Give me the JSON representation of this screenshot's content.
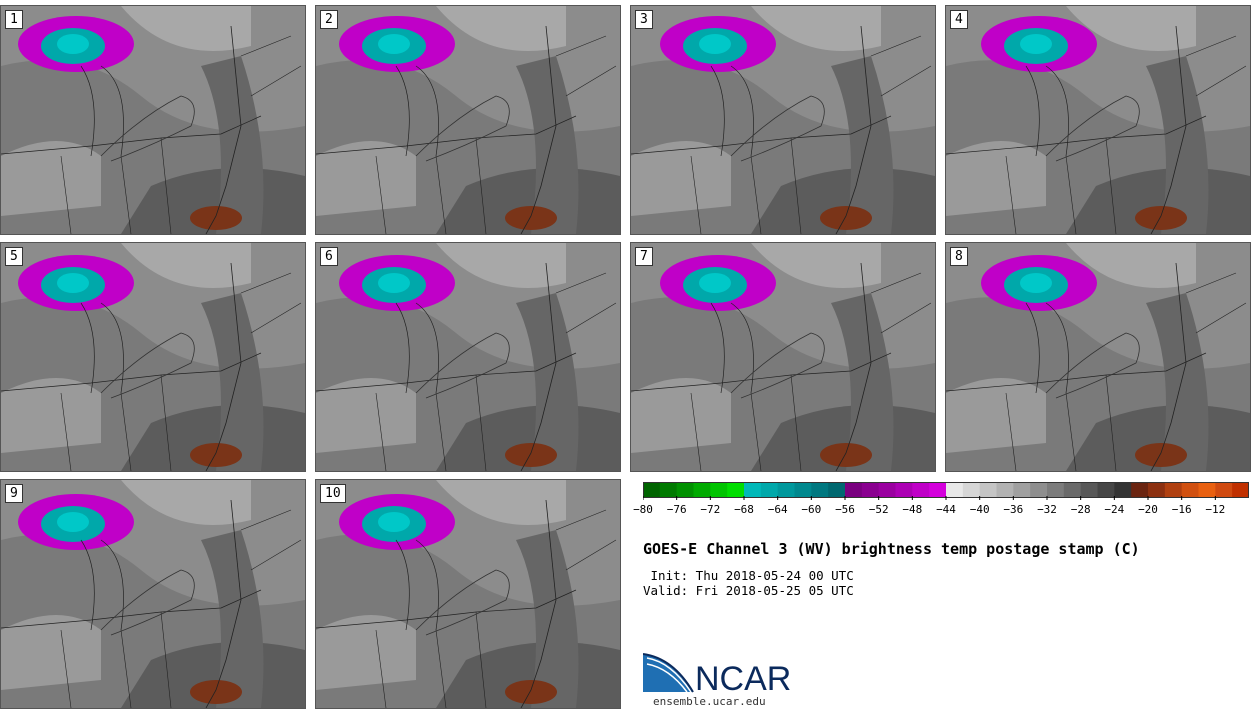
{
  "panels": [
    "1",
    "2",
    "3",
    "4",
    "5",
    "6",
    "7",
    "8",
    "9",
    "10"
  ],
  "colorbar": {
    "colors": [
      "#006400",
      "#007a00",
      "#009000",
      "#00aa00",
      "#00c400",
      "#00dd00",
      "#00b8b8",
      "#00a8aa",
      "#00989c",
      "#00888e",
      "#007880",
      "#006870",
      "#7a0080",
      "#8a0090",
      "#9a00a0",
      "#ac00b4",
      "#c000c8",
      "#d400dc",
      "#e8e8e8",
      "#d6d6d6",
      "#c4c4c4",
      "#b2b2b2",
      "#a0a0a0",
      "#8e8e8e",
      "#7c7c7c",
      "#6a6a6a",
      "#585858",
      "#464646",
      "#343434",
      "#6a2410",
      "#8c3010",
      "#b04010",
      "#d05010",
      "#e86010",
      "#d04a10",
      "#c03000"
    ],
    "ticks": [
      "−80",
      "−76",
      "−72",
      "−68",
      "−64",
      "−60",
      "−56",
      "−52",
      "−48",
      "−44",
      "−40",
      "−36",
      "−32",
      "−28",
      "−24",
      "−20",
      "−16",
      "−12"
    ]
  },
  "title": "GOES-E Channel 3 (WV) brightness temp postage stamp (C)",
  "init": " Init: Thu 2018-05-24 00 UTC",
  "valid": "Valid: Fri 2018-05-25 05 UTC",
  "logo": {
    "text": "NCAR",
    "url": "ensemble.ucar.edu",
    "colors": {
      "blue": "#1f6fb3",
      "navy": "#0b2a5c"
    }
  }
}
